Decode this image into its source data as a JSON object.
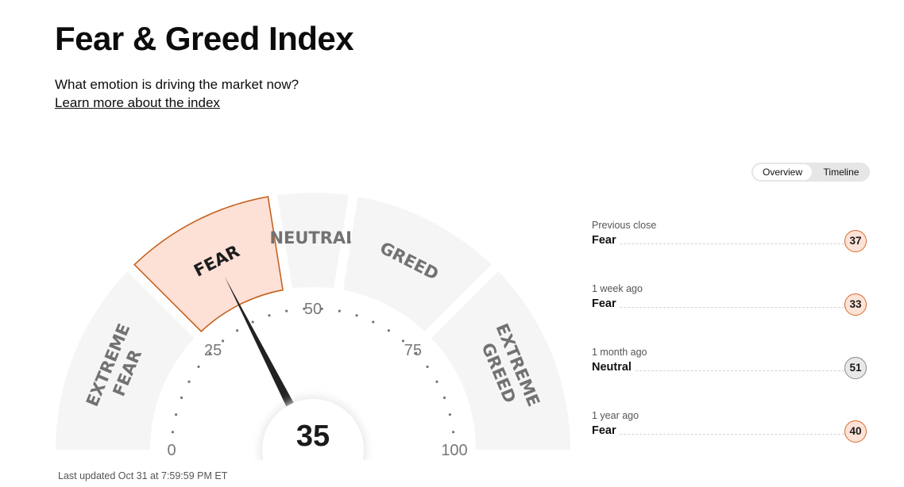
{
  "page": {
    "title": "Fear & Greed Index",
    "subtitle": "What emotion is driving the market now?",
    "learn_more": "Learn more about the index"
  },
  "view_toggle": {
    "options": [
      "Overview",
      "Timeline"
    ],
    "selected": "Overview"
  },
  "gauge": {
    "value": 35,
    "min": 0,
    "max": 100,
    "tick_labels": [
      "0",
      "25",
      "50",
      "75",
      "100"
    ],
    "active_segment": "FEAR",
    "segments": [
      {
        "name": "extreme-fear",
        "lines": [
          "EXTREME",
          "FEAR"
        ],
        "from": 0,
        "to": 25
      },
      {
        "name": "fear",
        "lines": [
          "FEAR"
        ],
        "from": 25,
        "to": 45
      },
      {
        "name": "neutral",
        "lines": [
          "NEUTRAL"
        ],
        "from": 45,
        "to": 55
      },
      {
        "name": "greed",
        "lines": [
          "GREED"
        ],
        "from": 55,
        "to": 75
      },
      {
        "name": "extreme-greed",
        "lines": [
          "EXTREME",
          "GREED"
        ],
        "from": 75,
        "to": 100
      }
    ],
    "colors": {
      "segment": "#f5f5f5",
      "active_fill": "#fde0d6",
      "active_stroke": "#c4621f",
      "label": "#727272",
      "active_label": "#1c1c1c",
      "needle": "#222222"
    }
  },
  "last_updated": "Last updated Oct 31 at 7:59:59 PM ET",
  "history": [
    {
      "label": "Previous close",
      "rating": "Fear",
      "value": "37",
      "type": "fear"
    },
    {
      "label": "1 week ago",
      "rating": "Fear",
      "value": "33",
      "type": "fear"
    },
    {
      "label": "1 month ago",
      "rating": "Neutral",
      "value": "51",
      "type": "neutral"
    },
    {
      "label": "1 year ago",
      "rating": "Fear",
      "value": "40",
      "type": "fear"
    }
  ]
}
